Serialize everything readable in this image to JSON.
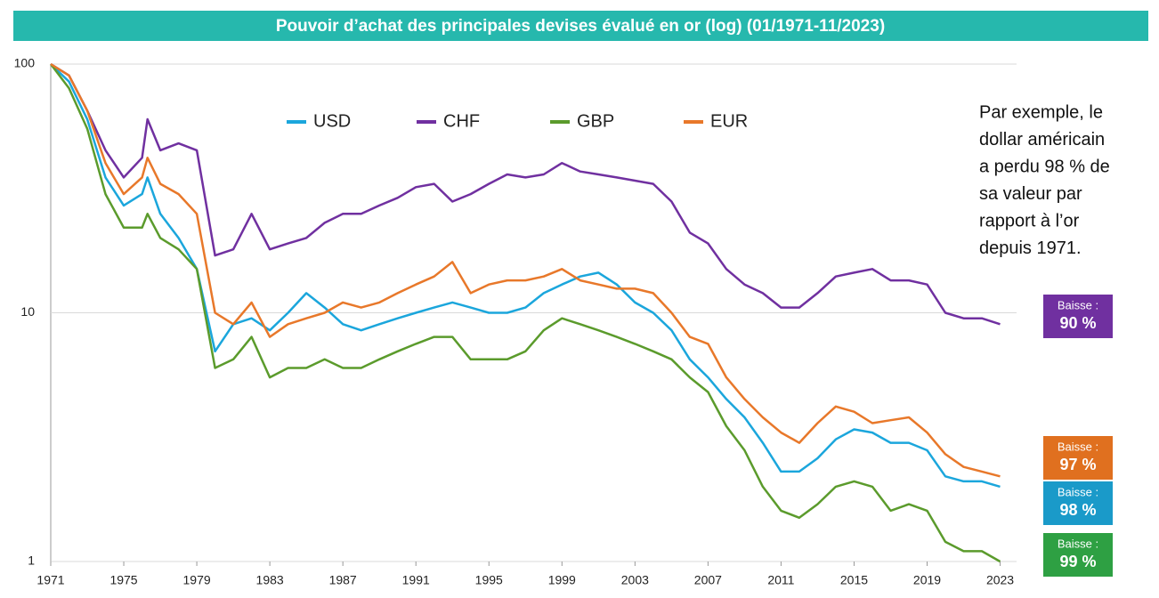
{
  "chart_data": {
    "type": "line",
    "title": "Pouvoir d’achat des principales devises évalué en or (log) (01/1971-11/2023)",
    "log_scale": true,
    "grid": true,
    "legend": "top",
    "x": [
      1971,
      1972,
      1973,
      1974,
      1975,
      1976,
      1976.3,
      1977,
      1978,
      1979,
      1980,
      1981,
      1982,
      1983,
      1984,
      1985,
      1986,
      1987,
      1988,
      1989,
      1990,
      1991,
      1992,
      1993,
      1994,
      1995,
      1996,
      1997,
      1998,
      1999,
      2000,
      2001,
      2002,
      2003,
      2004,
      2005,
      2006,
      2007,
      2008,
      2009,
      2010,
      2011,
      2012,
      2013,
      2014,
      2015,
      2016,
      2017,
      2018,
      2019,
      2020,
      2021,
      2022,
      2023
    ],
    "xlim": [
      1971,
      2023.9
    ],
    "xticks": [
      1971,
      1975,
      1979,
      1983,
      1987,
      1991,
      1995,
      1999,
      2003,
      2007,
      2011,
      2015,
      2019,
      2023
    ],
    "ylim": [
      1,
      100
    ],
    "yticks": [
      1,
      10,
      100
    ],
    "series": [
      {
        "name": "USD",
        "color": "#1ba6dc",
        "values": [
          100,
          85,
          60,
          35,
          27,
          30,
          35,
          25,
          20,
          15,
          7,
          9,
          9.5,
          8.5,
          10,
          12,
          10.5,
          9,
          8.5,
          9,
          9.5,
          10,
          10.5,
          11,
          10.5,
          10,
          10,
          10.5,
          12,
          13,
          14,
          14.5,
          13,
          11,
          10,
          8.5,
          6.5,
          5.5,
          4.5,
          3.8,
          3.0,
          2.3,
          2.3,
          2.6,
          3.1,
          3.4,
          3.3,
          3.0,
          3.0,
          2.8,
          2.2,
          2.1,
          2.1,
          2.0
        ]
      },
      {
        "name": "CHF",
        "color": "#7030a0",
        "values": [
          100,
          90,
          65,
          45,
          35,
          42,
          60,
          45,
          48,
          45,
          17,
          18,
          25,
          18,
          19,
          20,
          23,
          25,
          25,
          27,
          29,
          32,
          33,
          28,
          30,
          33,
          36,
          35,
          36,
          40,
          37,
          36,
          35,
          34,
          33,
          28,
          21,
          19,
          15,
          13,
          12,
          10.5,
          10.5,
          12,
          14,
          14.5,
          15,
          13.5,
          13.5,
          13,
          10,
          9.5,
          9.5,
          9
        ]
      },
      {
        "name": "GBP",
        "color": "#5b9b2c",
        "values": [
          100,
          80,
          55,
          30,
          22,
          22,
          25,
          20,
          18,
          15,
          6,
          6.5,
          8,
          5.5,
          6,
          6,
          6.5,
          6,
          6,
          6.5,
          7,
          7.5,
          8,
          8,
          6.5,
          6.5,
          6.5,
          7,
          8.5,
          9.5,
          9,
          8.5,
          8,
          7.5,
          7,
          6.5,
          5.5,
          4.8,
          3.5,
          2.8,
          2.0,
          1.6,
          1.5,
          1.7,
          2.0,
          2.1,
          2.0,
          1.6,
          1.7,
          1.6,
          1.2,
          1.1,
          1.1,
          1.0
        ]
      },
      {
        "name": "EUR",
        "color": "#e8782a",
        "values": [
          100,
          90,
          65,
          40,
          30,
          35,
          42,
          33,
          30,
          25,
          10,
          9,
          11,
          8,
          9,
          9.5,
          10,
          11,
          10.5,
          11,
          12,
          13,
          14,
          16,
          12,
          13,
          13.5,
          13.5,
          14,
          15,
          13.5,
          13,
          12.5,
          12.5,
          12,
          10,
          8,
          7.5,
          5.5,
          4.5,
          3.8,
          3.3,
          3.0,
          3.6,
          4.2,
          4.0,
          3.6,
          3.7,
          3.8,
          3.3,
          2.7,
          2.4,
          2.3,
          2.2
        ]
      }
    ],
    "annotation": [
      "Par exemple, le",
      "dollar américain",
      "a perdu 98 % de",
      "sa valeur par",
      "rapport à l’or",
      "depuis 1971."
    ],
    "badges": [
      {
        "label": "Baisse :",
        "text": "90 %",
        "color": "#7030a0"
      },
      {
        "label": "Baisse :",
        "text": "97 %",
        "color": "#e0701f"
      },
      {
        "label": "Baisse :",
        "text": "98 %",
        "color": "#1a9ac9"
      },
      {
        "label": "Baisse :",
        "text": "99 %",
        "color": "#2ea043"
      }
    ]
  }
}
